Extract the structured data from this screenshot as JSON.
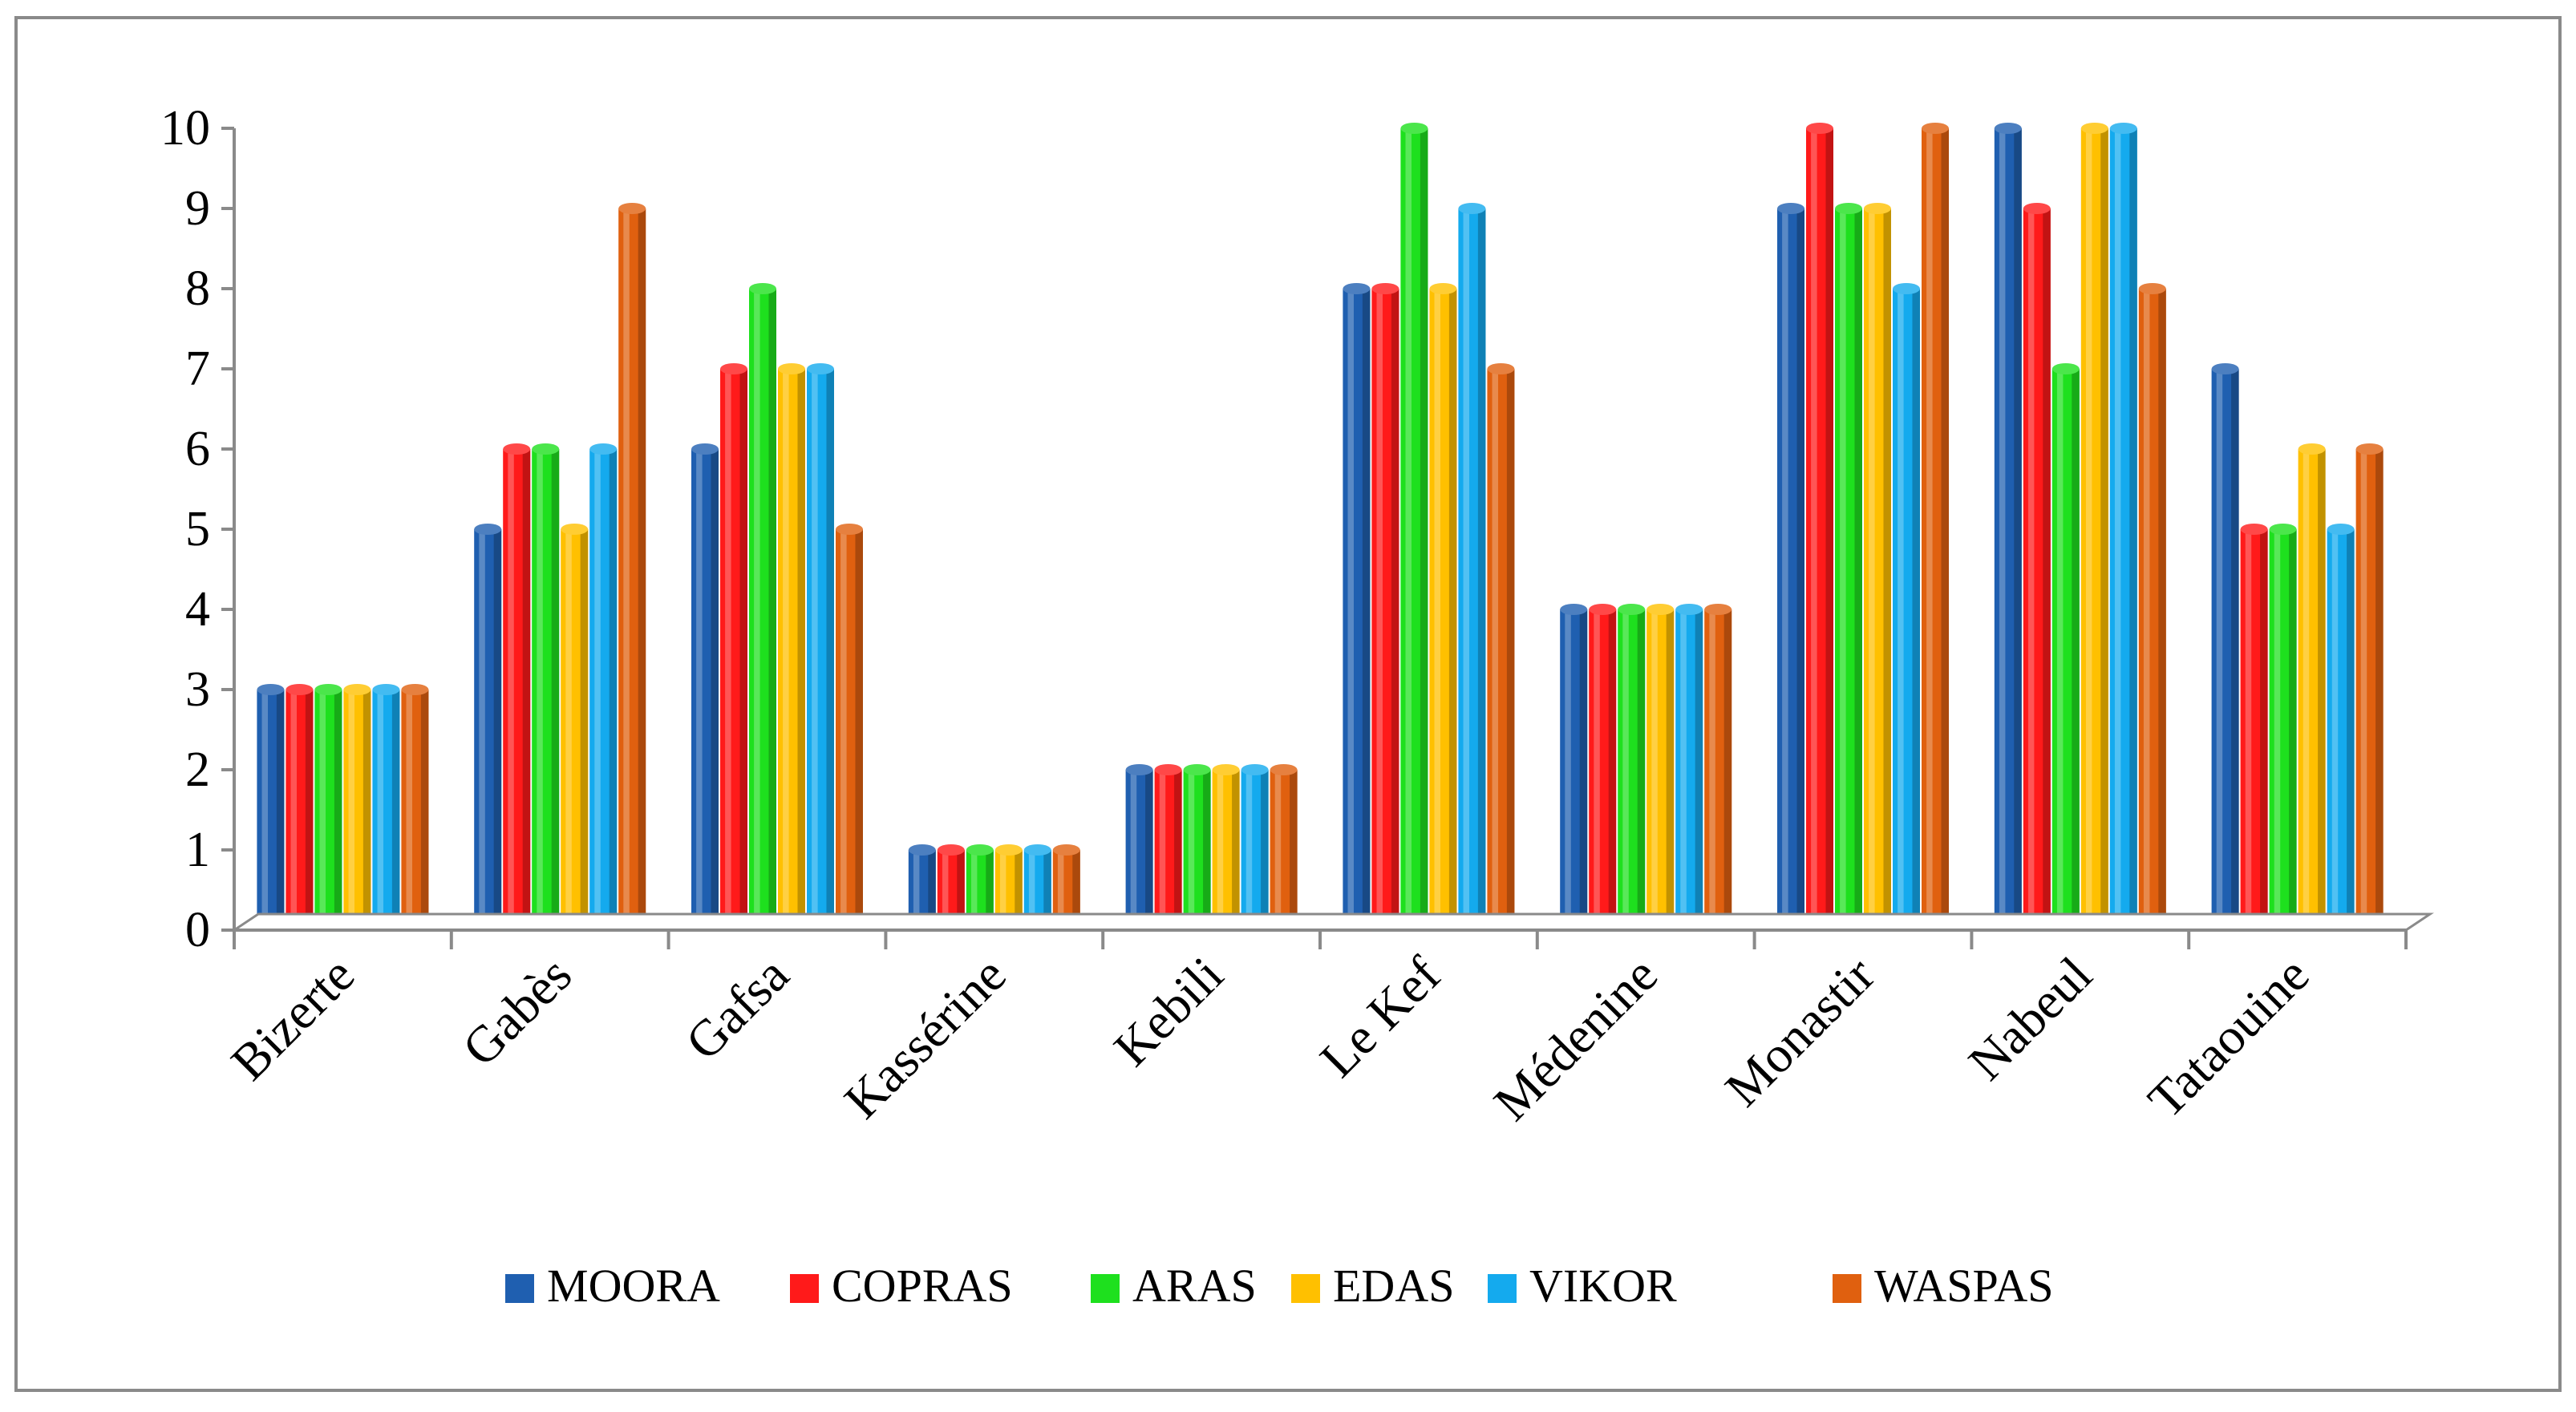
{
  "chart_data": {
    "type": "bar",
    "title": "",
    "xlabel": "",
    "ylabel": "",
    "ylim": [
      0,
      10
    ],
    "yticks": [
      "0",
      "1",
      "2",
      "3",
      "4",
      "5",
      "6",
      "7",
      "8",
      "9",
      "10"
    ],
    "grid": false,
    "legend_position": "bottom",
    "categories": [
      "Bizerte",
      "Gabès",
      "Gafsa",
      "Kassérine",
      "Kebili",
      "Le Kef",
      "Médenine",
      "Monastir",
      "Nabeul",
      "Tataouine"
    ],
    "series": [
      {
        "name": "MOORA",
        "color": "#1f5fb0",
        "values": [
          3,
          5,
          6,
          1,
          2,
          8,
          4,
          9,
          10,
          7
        ]
      },
      {
        "name": "COPRAS",
        "color": "#ff1a1a",
        "values": [
          3,
          6,
          7,
          1,
          2,
          8,
          4,
          10,
          9,
          5
        ]
      },
      {
        "name": "ARAS",
        "color": "#1ee01e",
        "values": [
          3,
          6,
          8,
          1,
          2,
          10,
          4,
          9,
          7,
          5
        ]
      },
      {
        "name": "EDAS",
        "color": "#ffc000",
        "values": [
          3,
          5,
          7,
          1,
          2,
          8,
          4,
          9,
          10,
          6
        ]
      },
      {
        "name": "VIKOR",
        "color": "#14aaee",
        "values": [
          3,
          6,
          7,
          1,
          2,
          9,
          4,
          8,
          10,
          5
        ]
      },
      {
        "name": "WASPAS",
        "color": "#e0600f",
        "values": [
          3,
          9,
          5,
          1,
          2,
          7,
          4,
          10,
          8,
          6
        ]
      }
    ]
  }
}
